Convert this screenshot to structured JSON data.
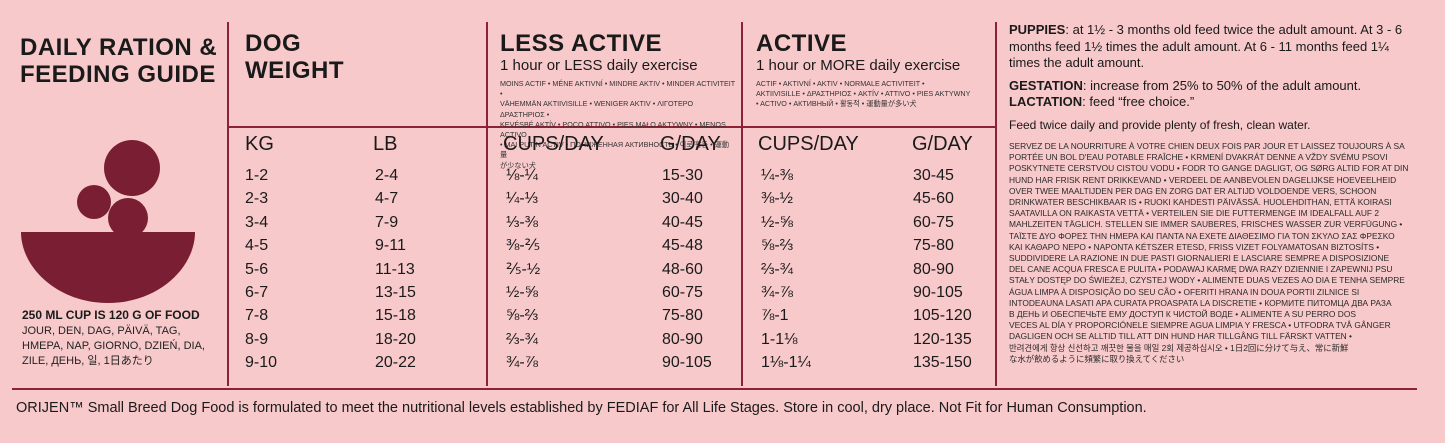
{
  "title": {
    "line1": "DAILY RATION &",
    "line2": "FEEDING GUIDE"
  },
  "cup_info": "250 ML CUP IS 120 G OF FOOD",
  "per_day_translations": [
    "JOUR, DEN, DAG, PÄIVÄ, TAG,",
    "HMEPA, NAP, GIORNO, DZIEŃ, DIA,",
    "ZILE, ДЕНЬ, 일, 1日あたり"
  ],
  "dog_weight": {
    "line1": "DOG",
    "line2": "WEIGHT"
  },
  "less_active": {
    "title": "LESS ACTIVE",
    "subtitle": "1 hour or LESS daily exercise",
    "translations": [
      "MOINS ACTIF • MÉNE AKTIVNÍ • MINDRE AKTIV • MINDER ACTIVITEIT •",
      "VÄHEMMÄN AKTIIVISILLE • WENIGER AKTIV • ΛΙΓΟΤΕΡΟ ΔΡΑΣΤΗΡΙΟΣ •",
      "KEVÉSBÉ AKTÍV • POCO ATTIVO • PIES MAŁO AKTYWNY • MENOS ACTIVO",
      "• MAI PUTIN ACTIV • ПОНИЖЕННАЯ АКТИВНОСТЬ • 이로 활동 • 運動量",
      "が少ない犬"
    ]
  },
  "active": {
    "title": "ACTIVE",
    "subtitle": "1 hour or MORE daily exercise",
    "translations": [
      "ACTIF • AKTIVNÍ • AKTIV • NORMALE ACTIVITEIT •",
      "AKTIIVISILLE • ΔΡΑΣΤΗΡΙΟΣ • AKTÍV • ATTIVO • PIES AKTYWNY",
      "• ACTIVO • АКТИВНЫЙ • 활동적 • 運動量が多い犬"
    ]
  },
  "columns": {
    "kg": "KG",
    "lb": "LB",
    "less_cups": "CUPS/DAY",
    "less_g": "G/DAY",
    "active_cups": "CUPS/DAY",
    "active_g": "G/DAY"
  },
  "table": {
    "kg": [
      "1-2",
      "2-3",
      "3-4",
      "4-5",
      "5-6",
      "6-7",
      "7-8",
      "8-9",
      "9-10"
    ],
    "lb": [
      "2-4",
      "4-7",
      "7-9",
      "9-11",
      "11-13",
      "13-15",
      "15-18",
      "18-20",
      "20-22"
    ],
    "less_cups": [
      "⅛-¼",
      "¼-⅓",
      "⅓-⅜",
      "⅜-⅖",
      "⅖-½",
      "½-⅝",
      "⅝-⅔",
      "⅔-¾",
      "¾-⅞"
    ],
    "less_g": [
      "15-30",
      "30-40",
      "40-45",
      "45-48",
      "48-60",
      "60-75",
      "75-80",
      "80-90",
      "90-105"
    ],
    "active_cups": [
      "¼-⅜",
      "⅜-½",
      "½-⅝",
      "⅝-⅔",
      "⅔-¾",
      "¾-⅞",
      "⅞-1",
      "1-1⅛",
      "1⅛-1¼"
    ],
    "active_g": [
      "30-45",
      "45-60",
      "60-75",
      "75-80",
      "80-90",
      "90-105",
      "105-120",
      "120-135",
      "135-150"
    ]
  },
  "puppies": {
    "label": "PUPPIES",
    "text": ": at 1½ - 3 months old feed twice the adult amount. At 3 - 6 months feed 1½ times the adult amount. At 6 - 11 months feed 1¼ times the adult amount."
  },
  "gestation": {
    "label": "GESTATION",
    "text": ": increase from 25% to 50% of the adult amount."
  },
  "lactation": {
    "label": "LACTATION",
    "text": ": feed “free choice.”"
  },
  "water_note": "Feed twice daily and provide plenty of fresh, clean water.",
  "multilang_lines": [
    "SERVEZ DE LA NOURRITURE À VOTRE CHIEN DEUX FOIS PAR JOUR ET LAISSEZ TOUJOURS À SA",
    "PORTÉE UN BOL D'EAU POTABLE FRAÎCHE • KRMENÍ DVAKRÁT DENNE A VŽDY SVÉMU PSOVI",
    "POSKYTNETE CERSTVOU CISTOU VODU • FODR TO GANGE DAGLIGT, OG SØRG ALTID FOR AT DIN",
    "HUND HAR FRISK RENT DRIKKEVAND • VERDEEL DE AANBEVOLEN DAGELIJKSE HOEVEELHEID",
    "OVER TWEE MAALTIJDEN PER DAG EN ZORG DAT ER ALTIJD VOLDOENDE VERS, SCHOON",
    "DRINKWATER BESCHIKBAAR IS • RUOKI KAHDESTI PÄIVÄSSÄ. HUOLEHDITHAN, ETTÄ KOIRASI",
    "SAATAVILLA ON RAIKASTA VETTÄ • VERTEILEN SIE DIE FUTTERMENGE IM IDEALFALL AUF 2",
    "MAHLZEITEN TÄGLICH. STELLEN SIE IMMER SAUBERES, FRISCHES WASSER ZUR VERFÜGUNG •",
    "ΤΑΪΣΤΕ ΔΥΟ ΦΟΡΕΣ ΤΗΝ ΗΜΕΡΑ ΚΑΙ ΠΑΝΤΑ ΝΑ ΕΧΕΤΕ ΔΙΑΘΕΣΙΜΟ ΓΙΑ ΤΟΝ ΣΚΥΛΟ ΣΑΣ ΦΡΕΣΚΟ",
    "ΚΑΙ ΚΑΘΑΡΟ ΝΕΡΟ • NAPONTA KÉTSZER ETESD, FRISS VIZET FOLYAMATOSAN BIZTOSÍTS •",
    "SUDDIVIDERE LA RAZIONE IN DUE PASTI GIORNALIERI E LASCIARE SEMPRE A DISPOSIZIONE",
    "DEL CANE ACQUA FRESCA E PULITA • PODAWAJ KARMĘ DWA RAZY DZIENNIE I ZAPEWNIJ PSU",
    "STAŁY DOSTĘP DO ŚWIEŻEJ, CZYSTEJ WODY • ALIMENTE DUAS VEZES AO DIA E TENHA SEMPRE",
    "ÁGUA LIMPA À DISPOSIÇÃO DO SEU CÃO • OFERITI HRANA IN DOUA PORTII ZILNICE SI",
    "INTODEAUNA LASATI APA CURATA PROASPATA LA DISCRETIE • КОРМИТЕ ПИТОМЦА ДВА РАЗА",
    "В ДЕНЬ И ОБЕСПЕЧЬТЕ ЕМУ ДОСТУП К ЧИСТОЙ ВОДЕ • ALIMENTE A SU PERRO DOS",
    "VECES AL DÍA Y PROPORCIÓNELE SIEMPRE AGUA LIMPIA Y FRESCA • UTFODRA TVÅ GÅNGER",
    "DAGLIGEN OCH SE ALLTID TILL ATT DIN HUND HAR TILLGÅNG TILL FÄRSKT VATTEN •",
    "반려견에게 항상 신선하고 깨끗한 물을 매일 2회 제공하십시오 • 1日2回に分けて与え、常に新鮮",
    "な水が飲めるように頻繁に取り換えてください"
  ],
  "footer": "ORIJEN™ Small Breed Dog Food is formulated to meet the nutritional levels established by FEDIAF for All Life Stages. Store in cool, dry place. Not Fit for Human Consumption.",
  "colors": {
    "background": "#f7c9cb",
    "accent": "#8c2335",
    "bowl": "#7a1f33"
  }
}
